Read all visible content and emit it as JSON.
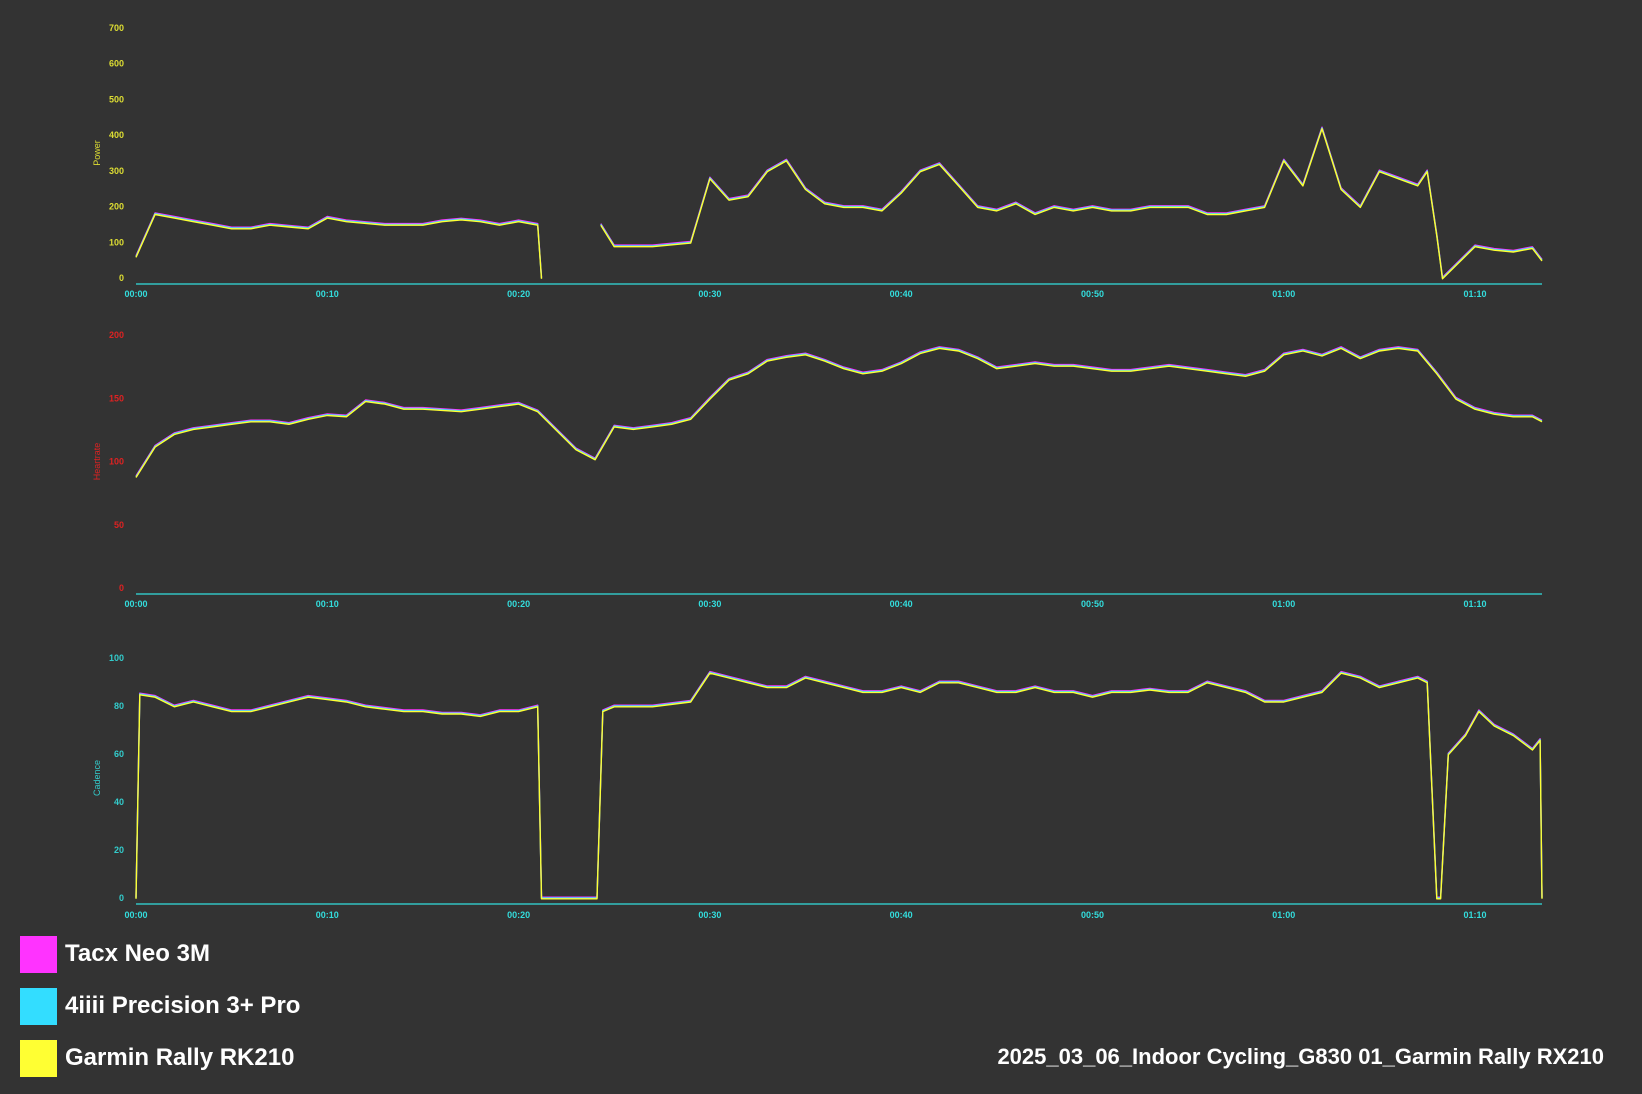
{
  "chart_data": [
    {
      "type": "line",
      "ylabel": "Power",
      "ylim": [
        0,
        700
      ],
      "yticks": [
        "0",
        "100",
        "200",
        "300",
        "400",
        "500",
        "600",
        "700"
      ],
      "xticks": [
        "00:00",
        "00:10",
        "00:20",
        "00:30",
        "00:40",
        "00:50",
        "01:00",
        "01:10"
      ],
      "xlim_minutes": [
        0,
        73.5
      ],
      "series_note_colors": {
        "Tacx Neo 3M": "#ff33ff",
        "4iiii Precision 3+ Pro": "#33ddff",
        "Garmin Rally RK210": "#ffff33"
      },
      "x": [
        0,
        1,
        2,
        3,
        4,
        5,
        6,
        7,
        8,
        9,
        10,
        11,
        12,
        13,
        14,
        15,
        16,
        17,
        18,
        19,
        20,
        21,
        21.2,
        24.1,
        24.3,
        25,
        27,
        29,
        30,
        31,
        32,
        33,
        34,
        35,
        36,
        37,
        38,
        39,
        40,
        41,
        42,
        43,
        44,
        45,
        46,
        47,
        48,
        49,
        50,
        51,
        52,
        53,
        54,
        55,
        56,
        57,
        58,
        59,
        60,
        61,
        62,
        63,
        64,
        65,
        66,
        67,
        67.5,
        68,
        68.3,
        70,
        71,
        72,
        73,
        73.5
      ],
      "values": [
        60,
        180,
        170,
        160,
        150,
        140,
        140,
        150,
        145,
        140,
        170,
        160,
        155,
        150,
        150,
        150,
        160,
        165,
        160,
        150,
        160,
        150,
        0,
        null,
        150,
        90,
        90,
        100,
        280,
        220,
        230,
        300,
        330,
        250,
        210,
        200,
        200,
        190,
        240,
        300,
        320,
        260,
        200,
        190,
        210,
        180,
        200,
        190,
        200,
        190,
        190,
        200,
        200,
        200,
        180,
        180,
        190,
        200,
        330,
        260,
        420,
        250,
        200,
        300,
        280,
        260,
        300,
        120,
        0,
        90,
        80,
        75,
        85,
        50
      ],
      "series": [
        {
          "name": "Garmin Rally RK210",
          "color": "#ffff33"
        },
        {
          "name": "4iiii Precision 3+ Pro",
          "color": "#33ddff"
        },
        {
          "name": "Tacx Neo 3M",
          "color": "#ff33ff"
        }
      ]
    },
    {
      "type": "line",
      "ylabel": "Heartrate",
      "ylim": [
        0,
        200
      ],
      "yticks": [
        "0",
        "50",
        "100",
        "150",
        "200"
      ],
      "xticks": [
        "00:00",
        "00:10",
        "00:20",
        "00:30",
        "00:40",
        "00:50",
        "01:00",
        "01:10"
      ],
      "xlim_minutes": [
        0,
        73.5
      ],
      "x": [
        0,
        1,
        2,
        3,
        4,
        5,
        6,
        7,
        8,
        9,
        10,
        11,
        12,
        13,
        14,
        15,
        16,
        17,
        18,
        19,
        20,
        21,
        22,
        23,
        24,
        25,
        26,
        27,
        28,
        29,
        30,
        31,
        32,
        33,
        34,
        35,
        36,
        37,
        38,
        39,
        40,
        41,
        42,
        43,
        44,
        45,
        46,
        47,
        48,
        49,
        50,
        51,
        52,
        53,
        54,
        55,
        56,
        57,
        58,
        59,
        60,
        61,
        62,
        63,
        64,
        65,
        66,
        67,
        68,
        69,
        70,
        71,
        72,
        73,
        73.5
      ],
      "values": [
        88,
        112,
        122,
        126,
        128,
        130,
        132,
        132,
        130,
        134,
        137,
        136,
        148,
        146,
        142,
        142,
        141,
        140,
        142,
        144,
        146,
        140,
        125,
        110,
        102,
        128,
        126,
        128,
        130,
        134,
        150,
        165,
        170,
        180,
        183,
        185,
        180,
        174,
        170,
        172,
        178,
        186,
        190,
        188,
        182,
        174,
        176,
        178,
        176,
        176,
        174,
        172,
        172,
        174,
        176,
        174,
        172,
        170,
        168,
        172,
        185,
        188,
        184,
        190,
        182,
        188,
        190,
        188,
        170,
        150,
        142,
        138,
        136,
        136,
        132
      ]
    },
    {
      "type": "line",
      "ylabel": "Cadence",
      "ylim": [
        0,
        100
      ],
      "yticks": [
        "0",
        "20",
        "40",
        "60",
        "80",
        "100"
      ],
      "xticks": [
        "00:00",
        "00:10",
        "00:20",
        "00:30",
        "00:40",
        "00:50",
        "01:00",
        "01:10"
      ],
      "xlim_minutes": [
        0,
        73.5
      ],
      "x": [
        0,
        0.2,
        1,
        2,
        3,
        4,
        5,
        6,
        7,
        8,
        9,
        10,
        11,
        12,
        13,
        14,
        15,
        16,
        17,
        18,
        19,
        20,
        21,
        21.2,
        24.1,
        24.4,
        25,
        27,
        29,
        30,
        31,
        32,
        33,
        34,
        35,
        36,
        37,
        38,
        39,
        40,
        41,
        42,
        43,
        44,
        45,
        46,
        47,
        48,
        49,
        50,
        51,
        52,
        53,
        54,
        55,
        56,
        57,
        58,
        59,
        60,
        61,
        62,
        63,
        64,
        65,
        66,
        67,
        67.5,
        68,
        68.2,
        68.6,
        69.5,
        70.2,
        71,
        72,
        73,
        73.4,
        73.5
      ],
      "values": [
        0,
        85,
        84,
        80,
        82,
        80,
        78,
        78,
        80,
        82,
        84,
        83,
        82,
        80,
        79,
        78,
        78,
        77,
        77,
        76,
        78,
        78,
        80,
        0,
        0,
        78,
        80,
        80,
        82,
        94,
        92,
        90,
        88,
        88,
        92,
        90,
        88,
        86,
        86,
        88,
        86,
        90,
        90,
        88,
        86,
        86,
        88,
        86,
        86,
        84,
        86,
        86,
        87,
        86,
        86,
        90,
        88,
        86,
        82,
        82,
        84,
        86,
        94,
        92,
        88,
        90,
        92,
        90,
        0,
        0,
        60,
        68,
        78,
        72,
        68,
        62,
        66,
        0
      ]
    }
  ],
  "legend": [
    {
      "label": "Tacx Neo 3M",
      "color": "#ff33ff"
    },
    {
      "label": "4iiii Precision 3+ Pro",
      "color": "#33ddff"
    },
    {
      "label": "Garmin Rally RK210",
      "color": "#ffff33"
    }
  ],
  "caption": "2025_03_06_Indoor Cycling_G830 01_Garmin Rally RX210",
  "colors": {
    "background": "#333333",
    "axis": "#33dddd",
    "power_ticks": "#dddd33",
    "heartrate_ticks": "#dd2222",
    "cadence_ticks": "#33cccc"
  }
}
